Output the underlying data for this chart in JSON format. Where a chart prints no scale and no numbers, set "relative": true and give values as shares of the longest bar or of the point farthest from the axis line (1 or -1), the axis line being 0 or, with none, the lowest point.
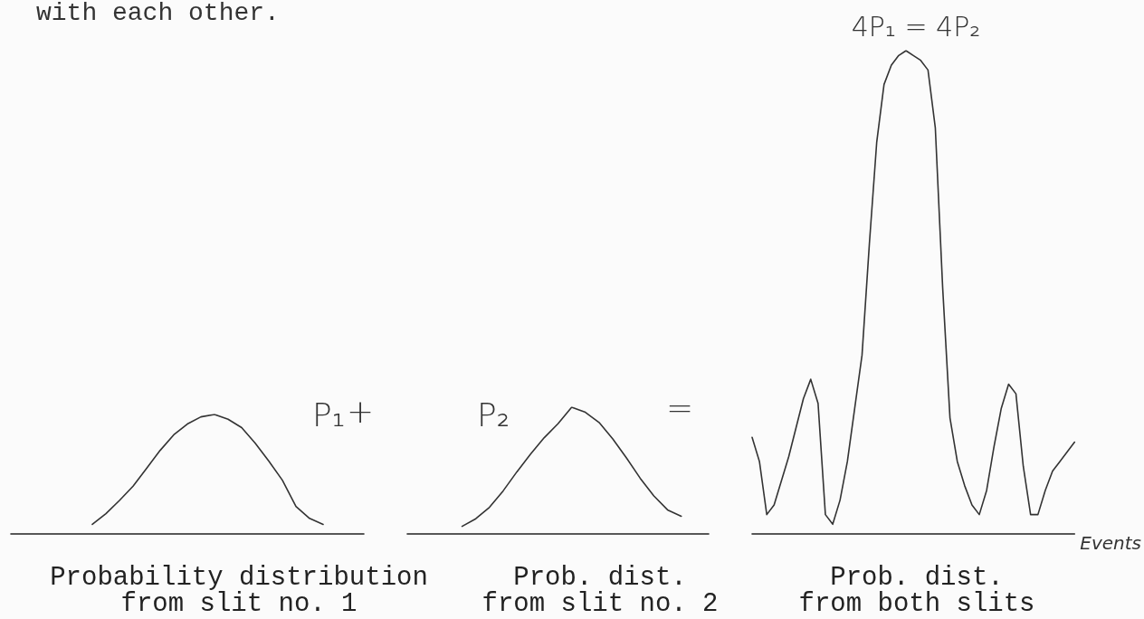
{
  "chart_data": [
    {
      "type": "line",
      "title": "Probability distribution\nfrom slit no. 1",
      "relative": true,
      "marker": "none",
      "legend": false,
      "annotations": [
        "with each other.",
        "+"
      ],
      "categories": [
        null,
        null,
        null,
        null,
        null,
        null,
        null,
        null,
        null,
        null,
        null,
        null,
        null,
        null,
        null,
        null,
        null,
        null,
        null,
        null,
        null,
        null,
        null,
        null,
        null,
        null,
        null
      ],
      "series": [
        {
          "name": "P₁",
          "color": "#333333",
          "values": [
            null,
            null,
            null,
            null,
            null,
            null,
            0.08,
            0.17,
            0.28,
            0.4,
            0.55,
            0.7,
            0.83,
            0.92,
            0.98,
            1,
            0.96,
            0.89,
            0.76,
            0.61,
            0.45,
            0.23,
            0.13,
            0.08,
            null,
            null,
            null
          ]
        }
      ]
    },
    {
      "type": "line",
      "title": "Prob. dist.\nfrom slit no. 2",
      "relative": true,
      "marker": "none",
      "legend": false,
      "annotations": [
        "="
      ],
      "categories": [
        null,
        null,
        null,
        null,
        null,
        null,
        null,
        null,
        null,
        null,
        null,
        null,
        null,
        null,
        null,
        null,
        null,
        null,
        null,
        null,
        null,
        null,
        null
      ],
      "series": [
        {
          "name": "P₂",
          "color": "#333333",
          "values": [
            null,
            null,
            null,
            null,
            0.06,
            0.12,
            0.21,
            0.34,
            0.49,
            0.63,
            0.76,
            0.87,
            1,
            0.96,
            0.88,
            0.75,
            0.6,
            0.44,
            0.3,
            0.19,
            0.14,
            null,
            null
          ]
        }
      ]
    },
    {
      "type": "line",
      "title": "Prob. dist.\nfrom both slits",
      "xlabel": "Events",
      "relative": true,
      "marker": "none",
      "legend": false,
      "annotations": [
        "4P₁ = 4P₂"
      ],
      "categories": [
        null,
        null,
        null,
        null,
        null,
        null,
        null,
        null,
        null,
        null,
        null,
        null,
        null,
        null,
        null,
        null,
        null,
        null,
        null,
        null,
        null,
        null,
        null,
        null,
        null,
        null,
        null,
        null,
        null,
        null,
        null,
        null,
        null,
        null,
        null,
        null,
        null,
        null,
        null,
        null,
        null,
        null,
        null,
        null,
        null
      ],
      "series": [
        {
          "color": "#333333",
          "values": [
            0.2,
            0.15,
            0.04,
            0.06,
            0.11,
            0.16,
            0.22,
            0.28,
            0.32,
            0.27,
            0.04,
            0.02,
            0.07,
            0.15,
            0.26,
            0.37,
            0.6,
            0.81,
            0.93,
            0.97,
            0.99,
            1,
            0.99,
            0.98,
            0.96,
            0.84,
            0.51,
            0.24,
            0.15,
            0.1,
            0.06,
            0.04,
            0.09,
            0.18,
            0.26,
            0.31,
            0.29,
            0.14,
            0.04,
            0.04,
            0.09,
            0.13,
            0.15,
            0.17,
            0.19
          ]
        }
      ]
    }
  ]
}
